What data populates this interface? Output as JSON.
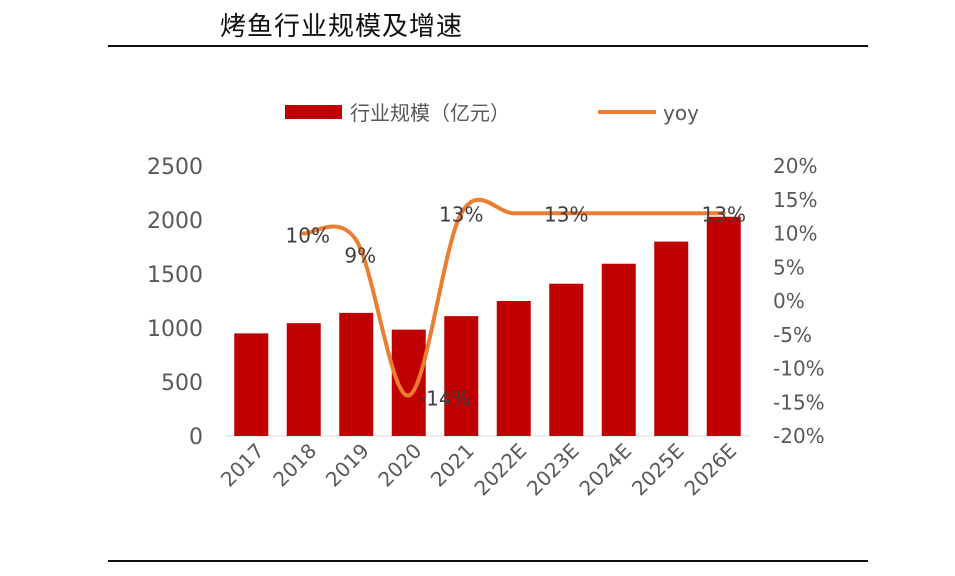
{
  "title": "烤鱼行业规模及增速",
  "colors": {
    "bar": "#c00000",
    "line": "#ed7d31",
    "axis_text": "#595959",
    "label_text": "#404040"
  },
  "chart_data": {
    "type": "bar",
    "categories": [
      "2017",
      "2018",
      "2019",
      "2020",
      "2021",
      "2022E",
      "2023E",
      "2024E",
      "2025E",
      "2026E"
    ],
    "series": [
      {
        "name": "行业规模（亿元）",
        "type": "bar",
        "axis": "left",
        "values": [
          950,
          1045,
          1140,
          985,
          1110,
          1250,
          1410,
          1595,
          1800,
          2030
        ]
      },
      {
        "name": "yoy",
        "type": "line",
        "axis": "right",
        "values": [
          null,
          10,
          9,
          -14,
          13,
          13,
          13,
          13,
          13,
          13
        ],
        "labels": [
          "",
          "10%",
          "9%",
          "-14%",
          "13%",
          "",
          "13%",
          "",
          "",
          "13%"
        ]
      }
    ],
    "left_axis": {
      "ylim": [
        0,
        2500
      ],
      "ticks": [
        "0",
        "500",
        "1000",
        "1500",
        "2000",
        "2500"
      ]
    },
    "right_axis": {
      "ylim": [
        -20,
        20
      ],
      "ticks": [
        "-20%",
        "-15%",
        "-10%",
        "-5%",
        "0%",
        "5%",
        "10%",
        "15%",
        "20%"
      ]
    },
    "legend_position": "top",
    "grid": false
  }
}
